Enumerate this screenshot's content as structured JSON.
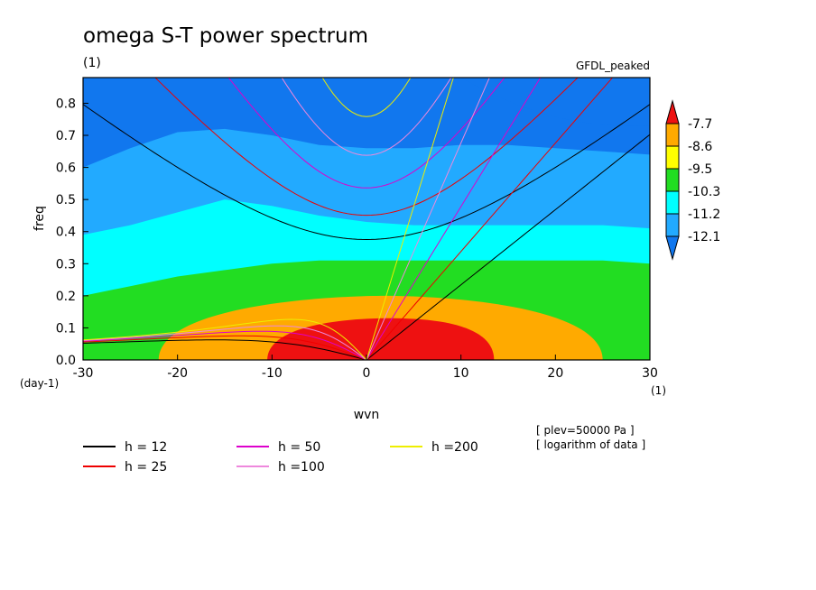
{
  "chart_data": {
    "type": "heatmap",
    "title": "omega S-T power spectrum",
    "units_label": "(1)",
    "model_label": "GFDL_peaked",
    "xlabel": "wvn",
    "ylabel": "freq",
    "x_unit_label": "(1)",
    "y_unit_label": "(day-1)",
    "xlim": [
      -30,
      30
    ],
    "ylim": [
      0.0,
      0.88
    ],
    "xticks": [
      "-30",
      "-20",
      "-10",
      "0",
      "10",
      "20",
      "30"
    ],
    "yticks": [
      "0.0",
      "0.1",
      "0.2",
      "0.3",
      "0.4",
      "0.5",
      "0.6",
      "0.7",
      "0.8"
    ],
    "colorbar": {
      "labels": [
        "-7.7",
        "-8.6",
        "-9.5",
        "-10.3",
        "-11.2",
        "-12.1"
      ],
      "colors": [
        "#ee1111",
        "#ffaa00",
        "#ffff00",
        "#22dd22",
        "#00ffff",
        "#22aaff",
        "#1177ee"
      ]
    },
    "contour_fills": [
      {
        "level": "lowest",
        "color": "#1177ee",
        "region": "upper-right corner"
      },
      {
        "level": "-12.1",
        "color": "#22aaff",
        "boundary_x": [
          -30,
          -25,
          -20,
          -15,
          -10,
          -5,
          0,
          5,
          10,
          15,
          20,
          25,
          30
        ],
        "boundary_y": [
          0.6,
          0.66,
          0.71,
          0.72,
          0.7,
          0.67,
          0.66,
          0.66,
          0.67,
          0.67,
          0.66,
          0.65,
          0.64
        ]
      },
      {
        "level": "-11.2",
        "color": "#00ffff",
        "boundary_x": [
          -30,
          -25,
          -20,
          -15,
          -10,
          -5,
          0,
          5,
          10,
          15,
          20,
          25,
          30
        ],
        "boundary_y": [
          0.39,
          0.42,
          0.46,
          0.5,
          0.48,
          0.45,
          0.43,
          0.42,
          0.42,
          0.42,
          0.42,
          0.42,
          0.41
        ]
      },
      {
        "level": "-10.3",
        "color": "#22dd22",
        "boundary_x": [
          -30,
          -25,
          -20,
          -15,
          -10,
          -5,
          0,
          5,
          10,
          15,
          20,
          25,
          30
        ],
        "boundary_y": [
          0.2,
          0.23,
          0.26,
          0.28,
          0.3,
          0.31,
          0.31,
          0.31,
          0.31,
          0.31,
          0.31,
          0.31,
          0.3
        ]
      },
      {
        "level": "-9.5",
        "color": "#ffff00",
        "boundary_x": [
          -30,
          -25,
          -20,
          -15,
          -10,
          -5,
          0,
          5,
          10,
          15,
          20,
          25,
          30
        ],
        "boundary_y": [
          0.0,
          0.0,
          0.0,
          0.0,
          0.0,
          0.0,
          0.0,
          0.0,
          0.0,
          0.0,
          0.0,
          0.0,
          0.0
        ]
      },
      {
        "level": "-8.6",
        "color": "#ffaa00",
        "center": [
          2,
          0.0
        ],
        "x_range": [
          -22,
          25
        ],
        "peak_freq": 0.2
      },
      {
        "level": "-7.7",
        "color": "#ee1111",
        "center": [
          2.5,
          0.0
        ],
        "x_range": [
          -10.5,
          13.5
        ],
        "peak_freq": 0.13
      }
    ],
    "series": [
      {
        "name": "h = 12",
        "color": "#000000",
        "equivalent_depth": 12
      },
      {
        "name": "h = 25",
        "color": "#ee0000",
        "equivalent_depth": 25
      },
      {
        "name": "h = 50",
        "color": "#dd00cc",
        "equivalent_depth": 50
      },
      {
        "name": "h =100",
        "color": "#ee88dd",
        "equivalent_depth": 100
      },
      {
        "name": "h =200",
        "color": "#eeee00",
        "equivalent_depth": 200
      }
    ],
    "notes": [
      "[ plev=50000 Pa ]",
      "[ logarithm of data ]"
    ],
    "grid": false,
    "legend_position": "bottom"
  }
}
